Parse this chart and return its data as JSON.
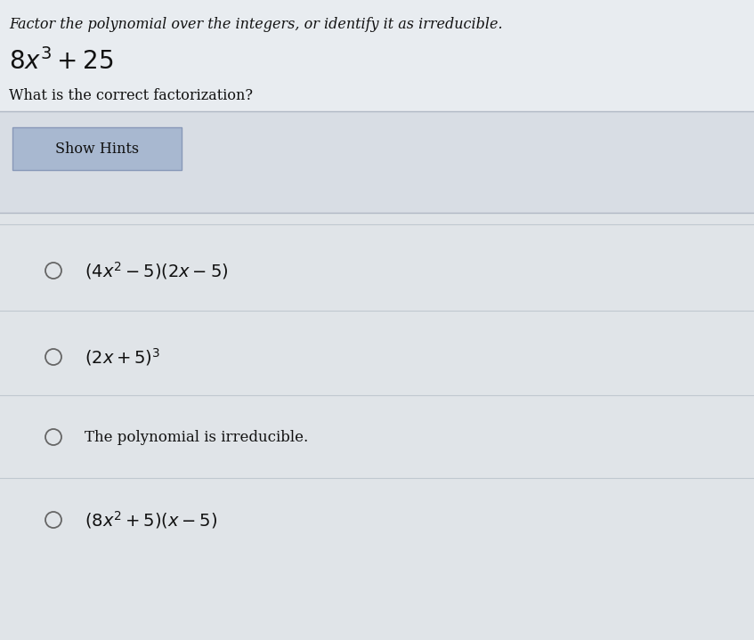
{
  "background_color": "#dde3ea",
  "page_bg": "#e8ecf0",
  "title_text": "Factor the polynomial over the integers, or identify it as irreducible.",
  "title_fontsize": 11.5,
  "question": "What is the correct factorization?",
  "button_text": "Show Hints",
  "button_bg": "#a8b8d0",
  "button_border": "#8898b8",
  "box_bg": "#d8dde4",
  "box_border": "#b0b8c4",
  "choices_bg": "#e0e4e8",
  "circle_color": "#666666",
  "text_color": "#111111",
  "divider_color": "#c0c8d0",
  "choice_circle_size": 0.008,
  "choice_fontsize": 13,
  "poly_fontsize": 20
}
